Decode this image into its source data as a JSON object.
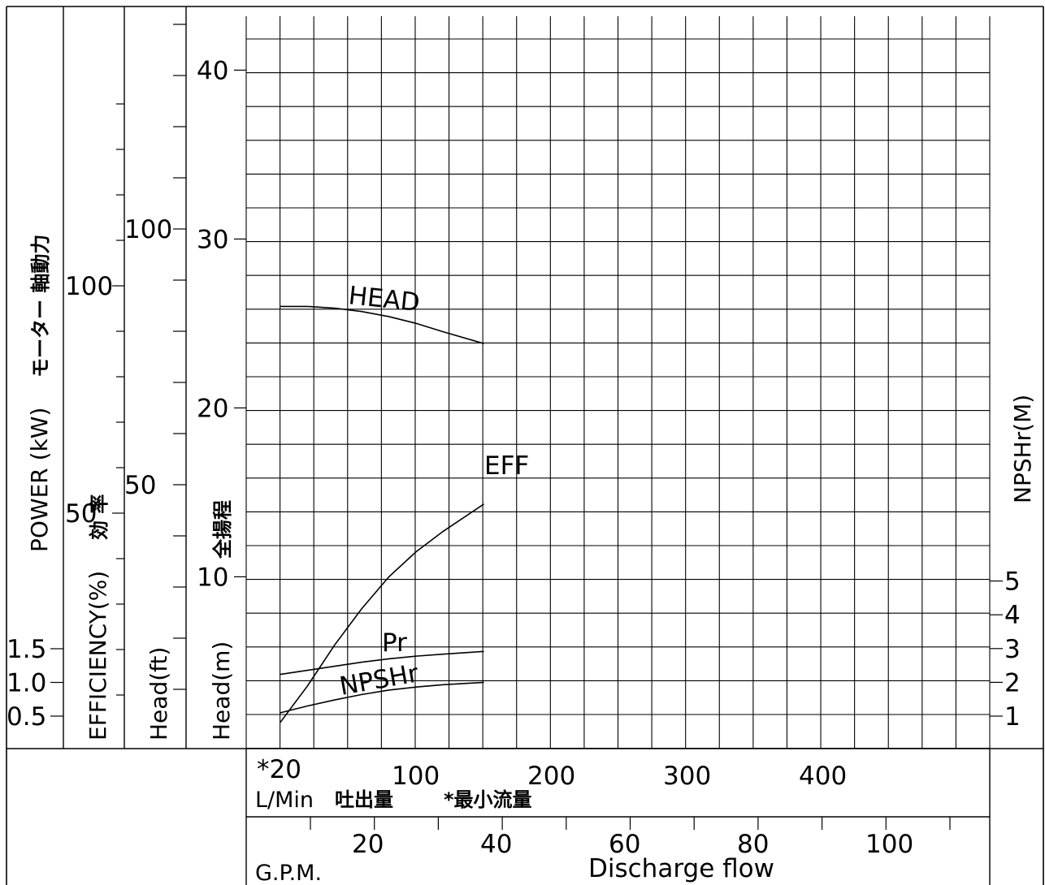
{
  "chart_data": {
    "type": "line",
    "x_axis": {
      "label_primary": "L/Min",
      "label_primary_jp": "吐出量",
      "min_flow_note": "*最小流量",
      "min_flow_marker": "*20",
      "ticks_lpm": [
        100,
        200,
        300,
        400
      ],
      "range_lpm": [
        -70,
        430
      ],
      "label_secondary": "G.P.M.",
      "ticks_gpm": [
        20,
        40,
        60,
        80,
        100
      ],
      "discharge_label": "Discharge flow"
    },
    "axes_labels": {
      "power": "POWER (kW)",
      "power_jp": "モーター 軸動力",
      "efficiency": "EFFICIENCY(%)",
      "efficiency_jp": "効 率",
      "head_ft": "Head(ft)",
      "head_m": "Head(m)",
      "head_jp": "全揚程",
      "npshr": "NPSHr(M)"
    },
    "ticks": {
      "power_kw": [
        "0.5",
        "1.0",
        "1.5"
      ],
      "efficiency_pct": [
        "50",
        "100"
      ],
      "head_ft": [
        "50",
        "100"
      ],
      "head_m": [
        "10",
        "20",
        "30",
        "40"
      ],
      "npshr_m": [
        "1",
        "2",
        "3",
        "4",
        "5"
      ]
    },
    "series": [
      {
        "name": "HEAD",
        "axis": "head_m",
        "x": [
          0,
          20,
          40,
          60,
          80,
          100,
          120,
          150
        ],
        "y": [
          26.2,
          26.2,
          26.1,
          25.9,
          25.6,
          25.2,
          24.7,
          24.0
        ]
      },
      {
        "name": "EFF",
        "axis": "efficiency_pct",
        "x": [
          0,
          20,
          40,
          60,
          80,
          100,
          120,
          150
        ],
        "y": [
          4,
          12,
          21,
          29,
          36,
          41.5,
          46,
          52
        ]
      },
      {
        "name": "Pr",
        "axis": "power_kw",
        "x": [
          0,
          20,
          40,
          60,
          80,
          100,
          120,
          150
        ],
        "y": [
          1.12,
          1.18,
          1.24,
          1.3,
          1.35,
          1.39,
          1.42,
          1.46
        ]
      },
      {
        "name": "NPSHr",
        "axis": "npshr_m",
        "x": [
          0,
          20,
          40,
          60,
          80,
          100,
          120,
          150
        ],
        "y": [
          1.1,
          1.3,
          1.48,
          1.64,
          1.77,
          1.86,
          1.93,
          2.0
        ]
      }
    ]
  }
}
